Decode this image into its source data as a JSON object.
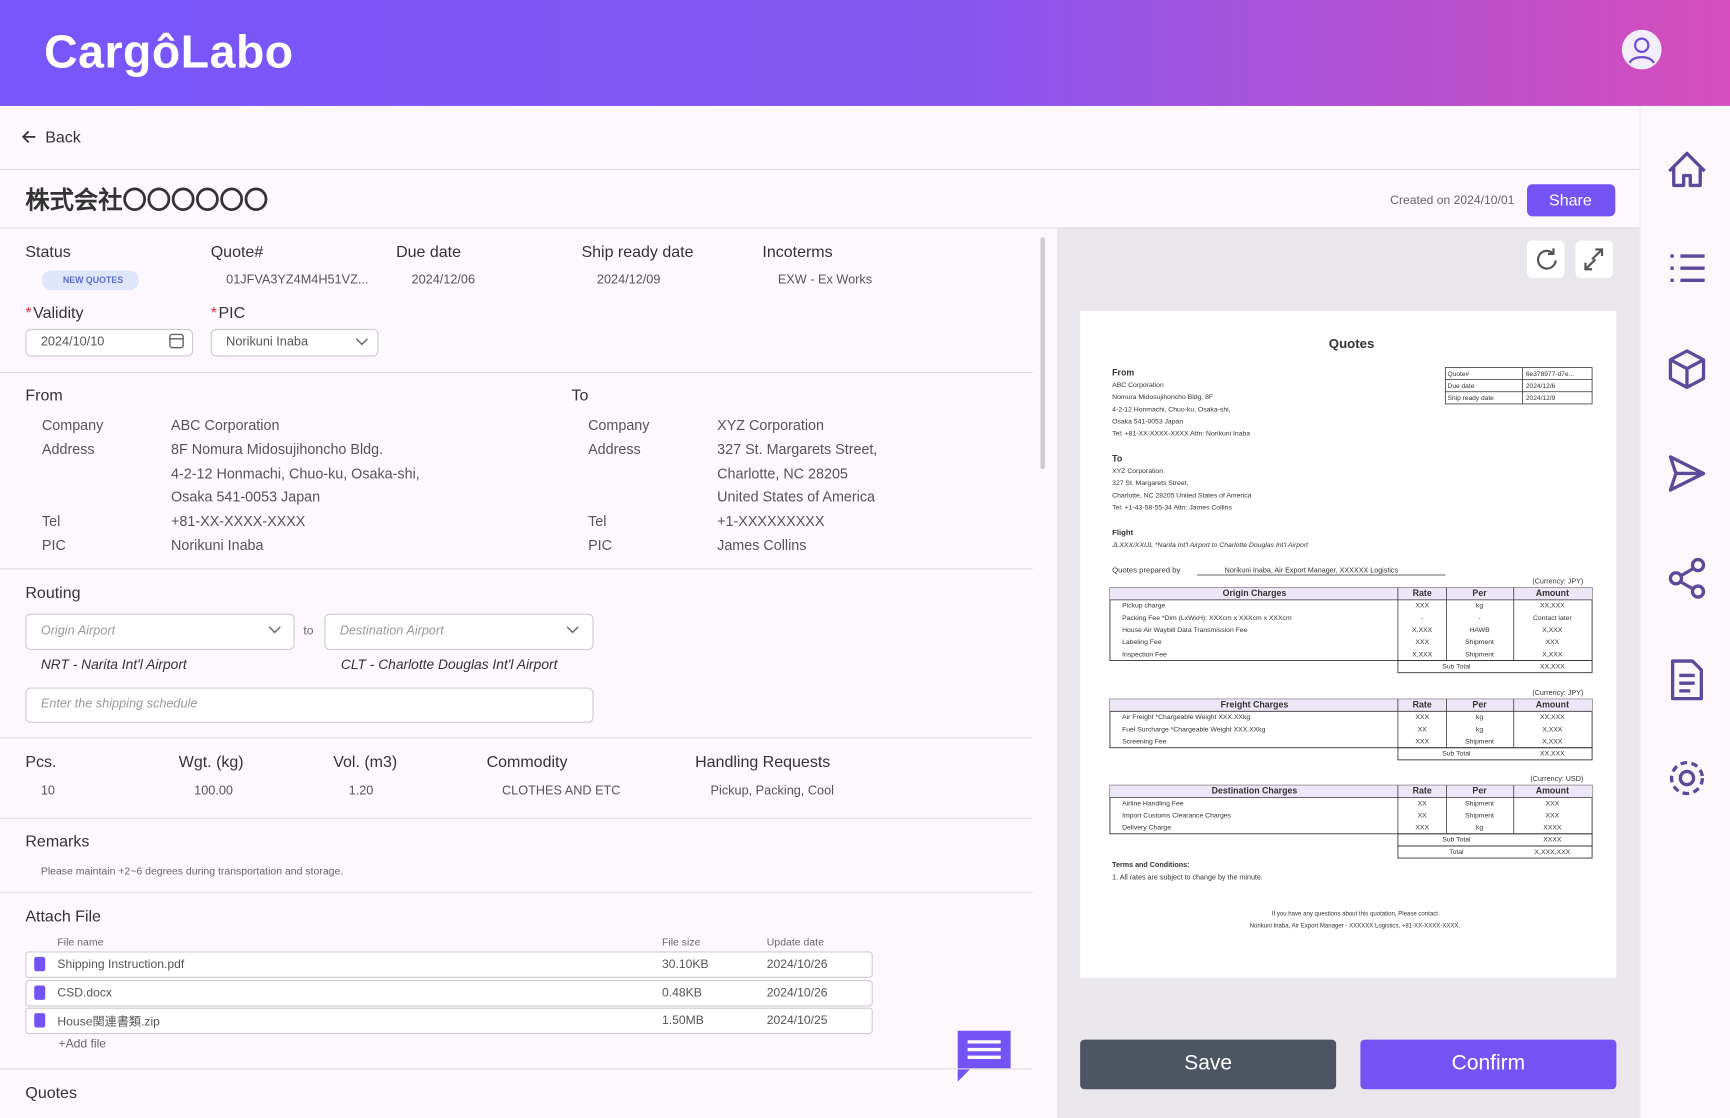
{
  "header": {
    "logo": "CargôLabo"
  },
  "nav": {
    "back": "Back"
  },
  "page": {
    "title": "株式会社〇〇〇〇〇〇",
    "created": "Created on 2024/10/01",
    "share": "Share"
  },
  "summary": {
    "fields": [
      {
        "label": "Status",
        "value": "NEW QUOTES"
      },
      {
        "label": "Quote#",
        "value": "01JFVA3YZ4M4H51VZ..."
      },
      {
        "label": "Due date",
        "value": "2024/12/06"
      },
      {
        "label": "Ship ready date",
        "value": "2024/12/09"
      },
      {
        "label": "Incoterms",
        "value": "EXW - Ex Works"
      }
    ],
    "validity": {
      "required": "*",
      "label": "Validity",
      "value": "2024/10/10"
    },
    "pic": {
      "required": "*",
      "label": "PIC",
      "value": "Norikuni Inaba"
    }
  },
  "parties": [
    {
      "title": "From",
      "rows": [
        {
          "label": "Company",
          "value": "ABC Corporation"
        },
        {
          "label": "Address",
          "value": "8F Nomura Midosujihoncho Bldg."
        },
        {
          "value": "4-2-12 Honmachi, Chuo-ku, Osaka-shi,"
        },
        {
          "value": "Osaka 541-0053 Japan"
        },
        {
          "label": "Tel",
          "value": "+81-XX-XXXX-XXXX"
        },
        {
          "label": "PIC",
          "value": "Norikuni Inaba"
        }
      ]
    },
    {
      "title": "To",
      "rows": [
        {
          "label": "Company",
          "value": "XYZ Corporation"
        },
        {
          "label": "Address",
          "value": "327 St. Margarets Street,"
        },
        {
          "value": "Charlotte, NC 28205"
        },
        {
          "value": "United States of America"
        },
        {
          "label": "Tel",
          "value": "+1-XXXXXXXXX"
        },
        {
          "label": "PIC",
          "value": "James Collins"
        }
      ]
    }
  ],
  "routing": {
    "title": "Routing",
    "origin_placeholder": "Origin Airport",
    "to": "to",
    "destination_placeholder": "Destination Airport",
    "origin": "NRT - Narita Int'l Airport",
    "destination": "CLT - Charlotte Douglas Int'l Airport",
    "schedule_placeholder": "Enter the shipping schedule"
  },
  "cargo": {
    "fields": [
      {
        "label": "Pcs.",
        "value": "10"
      },
      {
        "label": "Wgt. (kg)",
        "value": "100.00"
      },
      {
        "label": "Vol. (m3)",
        "value": "1.20"
      },
      {
        "label": "Commodity",
        "value": "CLOTHES AND ETC"
      },
      {
        "label": "Handling Requests",
        "value": "Pickup, Packing, Cool"
      }
    ]
  },
  "remarks": {
    "title": "Remarks",
    "text": "Please maintain +2~6 degrees during transportation and storage."
  },
  "attach": {
    "title": "Attach File",
    "columns": [
      "File name",
      "File size",
      "Update date"
    ],
    "rows": [
      [
        "Shipping Instruction.pdf",
        "30.10KB",
        "2024/10/26"
      ],
      [
        "CSD.docx",
        "0.48KB",
        "2024/10/26"
      ],
      [
        "House関連書類.zip",
        "1.50MB",
        "2024/10/25"
      ]
    ],
    "add": "+Add file"
  },
  "quotes_section": {
    "title": "Quotes"
  },
  "preview": {
    "title": "Quotes",
    "from": [
      "From",
      "ABC Corporation",
      "Nomura Midosujihoncho Bldg. 8F",
      "4-2-12 Honmachi, Chuo-ku, Osaka-shi,",
      "Osaka 541-0053 Japan",
      "Tel: +81-XX-XXXX-XXXX Attn: Norikuni Inaba"
    ],
    "meta": [
      [
        "Quote#",
        "6e378977-d7e..."
      ],
      [
        "Due date",
        "2024/12/6"
      ],
      [
        "Ship ready date",
        "2024/12/9"
      ]
    ],
    "to": [
      "To",
      "XYZ Corporation",
      "327 St. Margarets Street,",
      "Charlotte, NC 28205 United States of America",
      "Tel: +1-43-58-55-34 Attn: James Collins"
    ],
    "flight": [
      "Flight",
      "JLXXX/XXIJL *Narita Int'l Airport to Charlotte Douglas Int'l Airport"
    ],
    "prepared_label": "Quotes prepared by",
    "prepared_value": "Norikuni Inaba, Air Export Manager, XXXXXX Logistics",
    "tables": [
      {
        "currency": "(Currency: JPY)",
        "headers": [
          "Origin Charges",
          "Rate",
          "Per",
          "Amount"
        ],
        "rows": [
          [
            "Pickup charge",
            "XXX",
            "kg",
            "XX,XXX"
          ],
          [
            "Packing Fee *Dim (LxWxH): XXXcm x XXXcm x XXXcm",
            "-",
            "-",
            "Contact later"
          ],
          [
            "House Air Waybill Data Transmission Fee",
            "X,XXX",
            "HAWB",
            "X,XXX"
          ],
          [
            "Labeling Fee",
            "XXX",
            "Shipment",
            "XXX"
          ],
          [
            "Inspection Fee",
            "X,XXX",
            "Shipment",
            "X,XXX"
          ]
        ],
        "totals": [
          [
            "Sub Total",
            "XX,XXX"
          ]
        ]
      },
      {
        "currency": "(Currency: JPY)",
        "headers": [
          "Freight Charges",
          "Rate",
          "Per",
          "Amount"
        ],
        "rows": [
          [
            "Air Freight *Chargeable Weight XXX.XXkg",
            "XXX",
            "kg",
            "XX,XXX"
          ],
          [
            "Fuel Surcharge *Chargeable Weight XXX.XXkg",
            "XX",
            "kg",
            "X,XXX"
          ],
          [
            "Screening Fee",
            "XXX",
            "Shipment",
            "X,XXX"
          ]
        ],
        "totals": [
          [
            "Sub Total",
            "XX,XXX"
          ]
        ]
      },
      {
        "currency": "(Currency: USD)",
        "headers": [
          "Destination Charges",
          "Rate",
          "Per",
          "Amount"
        ],
        "rows": [
          [
            "Airline Handling Fee",
            "XX",
            "Shipment",
            "XXX"
          ],
          [
            "Import Customs Clearance Charges",
            "XX",
            "Shipment",
            "XXX"
          ],
          [
            "Delivery Charge",
            "XXX",
            "kg",
            "XXXX"
          ]
        ],
        "totals": [
          [
            "Sub Total",
            "XXXX"
          ],
          [
            "Total",
            "X,XXX,XXX"
          ]
        ]
      }
    ],
    "terms": [
      "Terms and Conditions:",
      "1. All rates are subject to change by the minute."
    ],
    "footer": [
      "If you have any questions about this quotation, Please contact",
      "Norikuni Inaba, Air Export Manager - XXXXXX Logistics, +81-XX-XXXX-XXXX."
    ]
  },
  "actions": {
    "save": "Save",
    "confirm": "Confirm"
  }
}
